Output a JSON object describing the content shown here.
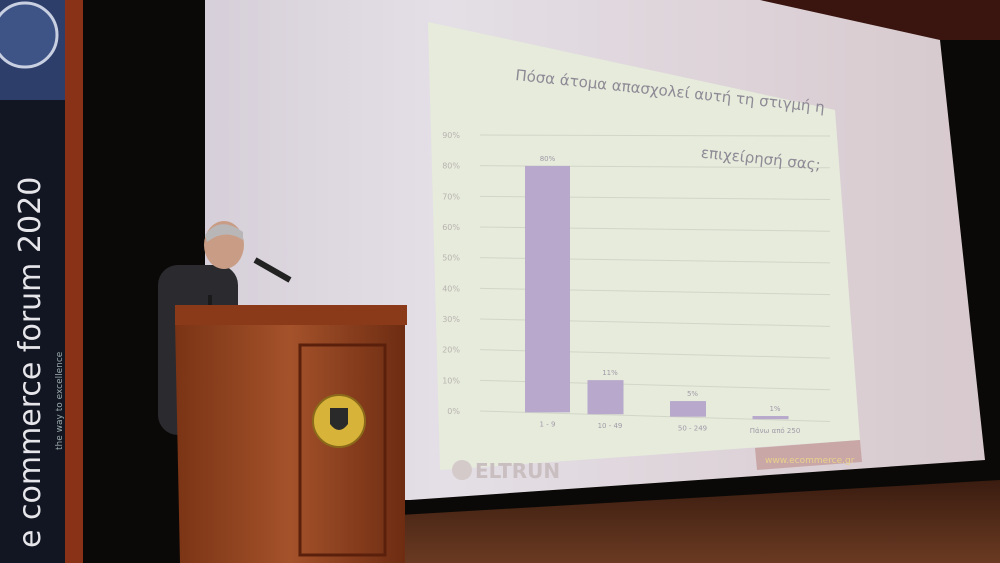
{
  "banner": {
    "brand": "e commerce forum 2020",
    "tagline": "the way to excellence"
  },
  "slide": {
    "logo": "ELTRUN",
    "footer_url": "www.ecommerce.gr",
    "colors": {
      "bar": "#b7a8cc",
      "slide_bg": "#e6ebdc",
      "screen": "#d9d3dc"
    }
  },
  "chart_data": {
    "type": "bar",
    "title": "Πόσα άτομα απασχολεί αυτή τη στιγμή η επιχείρησή σας;",
    "title_lines": [
      "Πόσα άτομα απασχολεί αυτή τη στιγμή η",
      "επιχείρησή σας;"
    ],
    "categories": [
      "1 - 9",
      "10 - 49",
      "50 - 249",
      "Πάνω από 250"
    ],
    "values": [
      80,
      11,
      5,
      1
    ],
    "data_labels": [
      "80%",
      "11%",
      "5%",
      "1%"
    ],
    "yticks": [
      "0%",
      "10%",
      "20%",
      "30%",
      "40%",
      "50%",
      "60%",
      "70%",
      "80%",
      "90%"
    ],
    "ylim": [
      0,
      90
    ],
    "grid": true,
    "legend": "none"
  }
}
